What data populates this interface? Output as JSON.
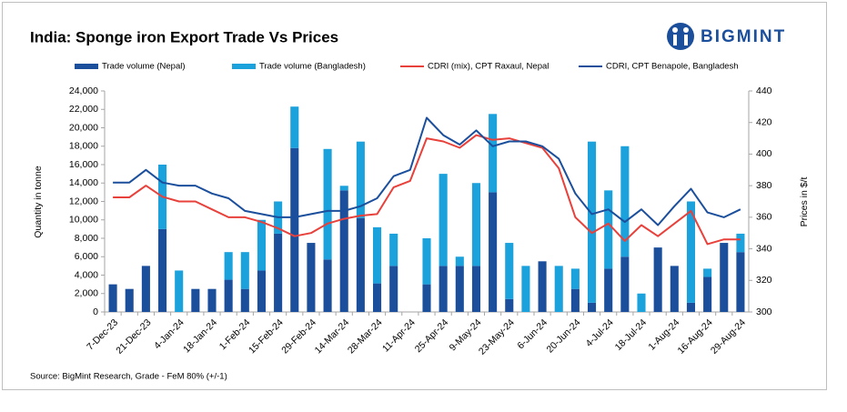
{
  "chart_data": {
    "type": "combo",
    "title": "India: Sponge iron Export Trade Vs Prices",
    "logo": "BIGMINT",
    "y_label": "Quantity in tonne",
    "y2_label": "Prices in $/t",
    "source": "Source: BigMint Research, Grade - FeM 80% (+/-1)",
    "categories": [
      "7-Dec-23",
      null,
      "21-Dec-23",
      null,
      "4-Jan-24",
      null,
      "18-Jan-24",
      null,
      "1-Feb-24",
      null,
      "15-Feb-24",
      null,
      "29-Feb-24",
      null,
      "14-Mar-24",
      null,
      "28-Mar-24",
      null,
      "11-Apr-24",
      null,
      "25-Apr-24",
      null,
      "9-May-24",
      null,
      "23-May-24",
      null,
      "6-Jun-24",
      null,
      "20-Jun-24",
      null,
      "4-Jul-24",
      null,
      "18-Jul-24",
      null,
      "1-Aug-24",
      null,
      "16-Aug-24",
      null,
      "29-Aug-24"
    ],
    "series": [
      {
        "name": "Trade volume (Nepal)",
        "type": "bar",
        "color": "#1b4f9c",
        "values": [
          3000,
          2500,
          5000,
          9000,
          0,
          2500,
          2500,
          3500,
          2500,
          4500,
          8500,
          17800,
          7500,
          5700,
          13200,
          10200,
          3100,
          5000,
          0,
          3000,
          5000,
          5000,
          5000,
          13000,
          1400,
          0,
          5500,
          0,
          2500,
          1000,
          4700,
          6000,
          0,
          7000,
          5000,
          1000,
          3800,
          7500,
          6500
        ]
      },
      {
        "name": "Trade volume (Bangladesh)",
        "type": "bar",
        "color": "#1ba1dc",
        "values": [
          0,
          0,
          0,
          7000,
          4500,
          0,
          0,
          3000,
          4000,
          5500,
          3500,
          4500,
          0,
          12000,
          500,
          8300,
          6100,
          3500,
          0,
          5000,
          10000,
          1000,
          9000,
          8500,
          6100,
          5000,
          0,
          5000,
          2200,
          17500,
          8500,
          12000,
          2000,
          0,
          0,
          11000,
          900,
          0,
          2000
        ]
      },
      {
        "name": "CDRI (mix), CPT Raxaul, Nepal",
        "type": "line",
        "axis": "y2",
        "color": "#e8413b",
        "values": [
          372.6,
          372.6,
          380,
          373,
          370,
          370,
          365,
          360,
          360,
          357,
          353,
          348,
          350,
          356,
          359,
          361,
          362,
          379,
          383,
          410,
          408,
          404,
          412,
          409,
          410,
          407,
          404,
          391,
          360,
          350,
          356,
          345,
          355,
          348,
          356,
          364,
          343,
          346,
          346
        ]
      },
      {
        "name": "CDRI, CPT Benapole, Bangladesh",
        "type": "line",
        "axis": "y2",
        "color": "#1b4f9c",
        "values": [
          382,
          382,
          390,
          382,
          380,
          380,
          375,
          372,
          364,
          362,
          360,
          360,
          362,
          364,
          364,
          367,
          372,
          386,
          390,
          423,
          412,
          406,
          415,
          405,
          408,
          408,
          405,
          397,
          375,
          362,
          365,
          357,
          365,
          355,
          367,
          378,
          363,
          360,
          365
        ]
      }
    ],
    "ylim": [
      0,
      24000
    ],
    "yticks": [
      {
        "value": 0,
        "label": "0"
      },
      {
        "value": 2000,
        "label": "2,000"
      },
      {
        "value": 4000,
        "label": "4,000"
      },
      {
        "value": 6000,
        "label": "6,000"
      },
      {
        "value": 8000,
        "label": "8,000"
      },
      {
        "value": 10000,
        "label": "10,000"
      },
      {
        "value": 12000,
        "label": "12,000"
      },
      {
        "value": 14000,
        "label": "14,000"
      },
      {
        "value": 16000,
        "label": "16,000"
      },
      {
        "value": 18000,
        "label": "18,000"
      },
      {
        "value": 20000,
        "label": "20,000"
      },
      {
        "value": 22000,
        "label": "22,000"
      },
      {
        "value": 24000,
        "label": "24,000"
      }
    ],
    "y2lim": [
      300,
      440
    ],
    "y2ticks": [
      300,
      320,
      340,
      360,
      380,
      400,
      420,
      440
    ],
    "grid": false
  }
}
